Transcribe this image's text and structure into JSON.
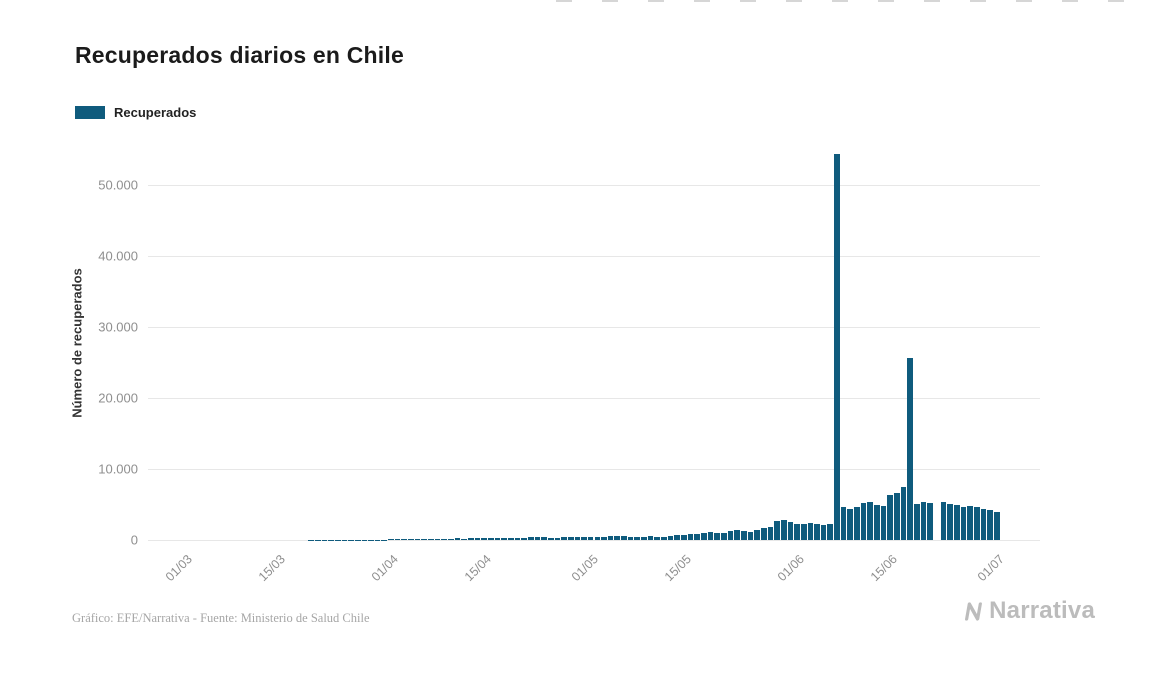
{
  "title": "Recuperados diarios en Chile",
  "legend": {
    "label": "Recuperados",
    "color": "#0f5b7d"
  },
  "y_axis_label": "Número de recuperados",
  "footer": {
    "credit": "Gráfico: EFE/Narrativa - Fuente: Ministerio de Salud Chile",
    "logo_text": "Narrativa"
  },
  "chart_data": {
    "type": "bar",
    "title": "Recuperados diarios en Chile",
    "xlabel": "",
    "ylabel": "Número de recuperados",
    "ylim": [
      0,
      55000
    ],
    "grid": true,
    "legend_position": "top-left",
    "bar_color": "#0f5b7d",
    "yticks": [
      {
        "value": 0,
        "label": "0"
      },
      {
        "value": 10000,
        "label": "10.000"
      },
      {
        "value": 20000,
        "label": "20.000"
      },
      {
        "value": 30000,
        "label": "30.000"
      },
      {
        "value": 40000,
        "label": "40.000"
      },
      {
        "value": 50000,
        "label": "50.000"
      }
    ],
    "xticks": [
      "01/03",
      "15/03",
      "01/04",
      "15/04",
      "01/05",
      "15/05",
      "01/06",
      "15/06",
      "01/07"
    ],
    "categories": [
      "25/02",
      "26/02",
      "27/02",
      "28/02",
      "29/02",
      "01/03",
      "02/03",
      "03/03",
      "04/03",
      "05/03",
      "06/03",
      "07/03",
      "08/03",
      "09/03",
      "10/03",
      "11/03",
      "12/03",
      "13/03",
      "14/03",
      "15/03",
      "16/03",
      "17/03",
      "18/03",
      "19/03",
      "20/03",
      "21/03",
      "22/03",
      "23/03",
      "24/03",
      "25/03",
      "26/03",
      "27/03",
      "28/03",
      "29/03",
      "30/03",
      "31/03",
      "01/04",
      "02/04",
      "03/04",
      "04/04",
      "05/04",
      "06/04",
      "07/04",
      "08/04",
      "09/04",
      "10/04",
      "11/04",
      "12/04",
      "13/04",
      "14/04",
      "15/04",
      "16/04",
      "17/04",
      "18/04",
      "19/04",
      "20/04",
      "21/04",
      "22/04",
      "23/04",
      "24/04",
      "25/04",
      "26/04",
      "27/04",
      "28/04",
      "29/04",
      "30/04",
      "01/05",
      "02/05",
      "03/05",
      "04/05",
      "05/05",
      "06/05",
      "07/05",
      "08/05",
      "09/05",
      "10/05",
      "11/05",
      "12/05",
      "13/05",
      "14/05",
      "15/05",
      "16/05",
      "17/05",
      "18/05",
      "19/05",
      "20/05",
      "21/05",
      "22/05",
      "23/05",
      "24/05",
      "25/05",
      "26/05",
      "27/05",
      "28/05",
      "29/05",
      "30/05",
      "31/05",
      "01/06",
      "02/06",
      "03/06",
      "04/06",
      "05/06",
      "06/06",
      "07/06",
      "08/06",
      "09/06",
      "10/06",
      "11/06",
      "12/06",
      "13/06",
      "14/06",
      "15/06",
      "16/06",
      "17/06",
      "18/06",
      "19/06",
      "20/06",
      "21/06",
      "22/06",
      "23/06",
      "24/06",
      "25/06",
      "26/06",
      "27/06",
      "28/06",
      "29/06",
      "30/06",
      "01/07",
      "02/07",
      "03/07",
      "04/07",
      "05/07",
      "06/07",
      "07/07"
    ],
    "values": [
      0,
      0,
      0,
      0,
      0,
      0,
      0,
      0,
      0,
      0,
      0,
      0,
      0,
      0,
      0,
      0,
      0,
      0,
      0,
      0,
      0,
      0,
      0,
      0,
      2,
      3,
      5,
      6,
      8,
      10,
      12,
      15,
      20,
      25,
      40,
      60,
      80,
      150,
      120,
      100,
      130,
      160,
      180,
      200,
      170,
      190,
      220,
      200,
      230,
      260,
      280,
      300,
      330,
      300,
      280,
      320,
      350,
      380,
      400,
      370,
      340,
      320,
      360,
      420,
      450,
      480,
      440,
      470,
      430,
      500,
      540,
      510,
      470,
      430,
      480,
      520,
      490,
      450,
      560,
      640,
      720,
      800,
      900,
      1000,
      1150,
      1050,
      980,
      1250,
      1400,
      1250,
      1150,
      1450,
      1650,
      1900,
      2700,
      2800,
      2500,
      2300,
      2200,
      2400,
      2300,
      2100,
      2250,
      54500,
      4700,
      4400,
      4600,
      5200,
      5400,
      5000,
      4800,
      6300,
      6600,
      7500,
      25600,
      5100,
      5300,
      5200,
      0,
      5300,
      5100,
      4900,
      4700,
      4800,
      4600,
      4400,
      4300,
      3900,
      0,
      0,
      0,
      0,
      0,
      0
    ]
  }
}
